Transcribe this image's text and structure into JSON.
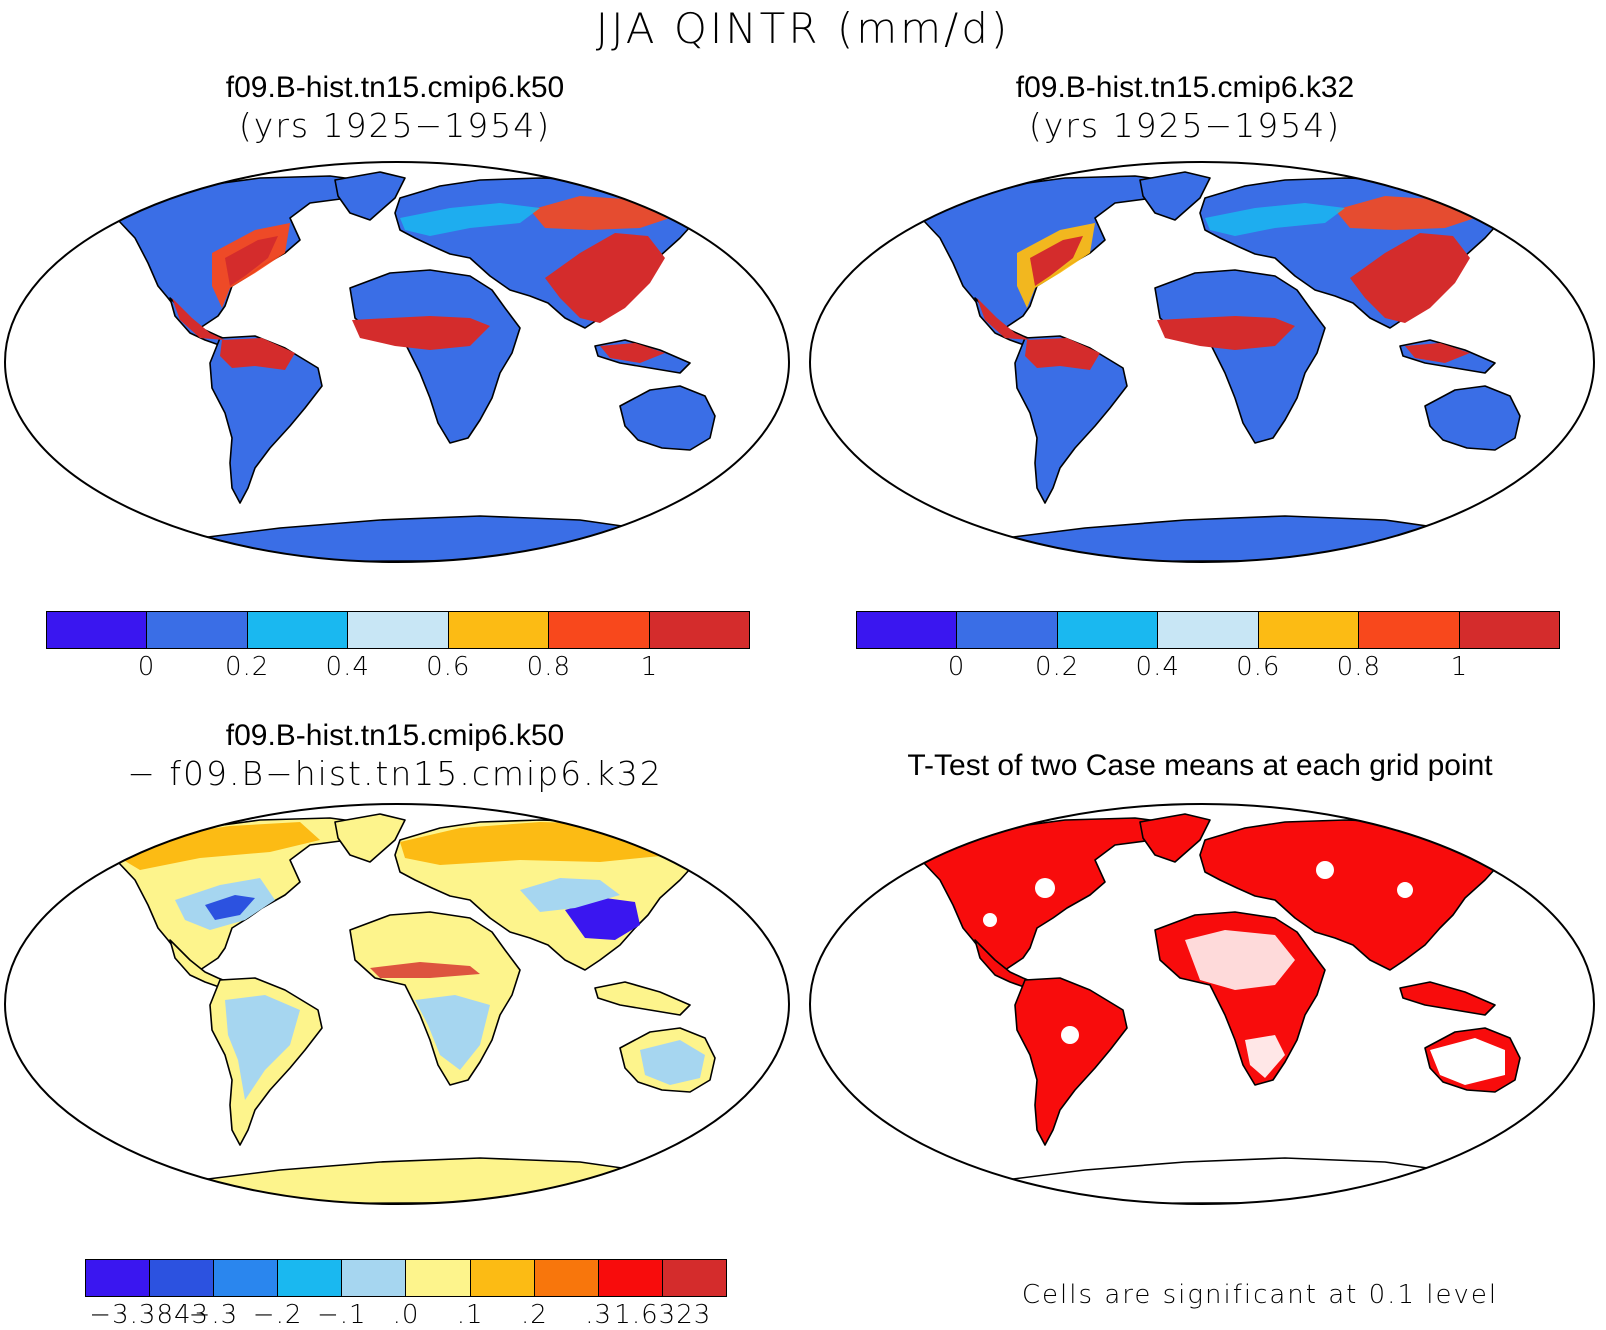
{
  "title": "JJA QINTR (mm/d)",
  "panels": [
    {
      "title": "f09.B-hist.tn15.cmip6.k50",
      "subtitle": "(yrs 1925−1954)"
    },
    {
      "title": "f09.B-hist.tn15.cmip6.k32",
      "subtitle": "(yrs 1925−1954)"
    },
    {
      "title": "f09.B-hist.tn15.cmip6.k50",
      "subtitle": "− f09.B−hist.tn15.cmip6.k32"
    },
    {
      "title": "T-Test of two Case means at each grid point",
      "subtitle": ""
    }
  ],
  "colorbar_abs": {
    "colors": [
      "#3a16f0",
      "#3a6ee6",
      "#1ab8f0",
      "#c8e6f5",
      "#fcbb14",
      "#f8481c",
      "#d42c2c"
    ],
    "ticks": [
      "0",
      "0.2",
      "0.4",
      "0.6",
      "0.8",
      "1"
    ]
  },
  "colorbar_diff": {
    "colors": [
      "#3a16f0",
      "#2c52e0",
      "#2a86ee",
      "#1ab8f0",
      "#a6d6f0",
      "#fdf48c",
      "#fcbb14",
      "#f8760c",
      "#f80c0c",
      "#d42c2c"
    ],
    "ticks": [
      "−3.3843",
      "−.3",
      "−.2",
      "−.1",
      ".0",
      ".1",
      ".2",
      ".3",
      "1.6323"
    ]
  },
  "significance_note": "Cells are significant at 0.1 level",
  "map_colors": {
    "land_abs": "#3a6ee6",
    "wet_abs": "#d42c2c",
    "mid_abs": "#f8481c",
    "warm_abs": "#fcbb14",
    "land_diff": "#fdf48c",
    "neg_diff": "#a6d6f0",
    "strong_neg_diff": "#3a16f0",
    "pos_diff": "#fcbb14",
    "sig": "#f80c0c"
  }
}
